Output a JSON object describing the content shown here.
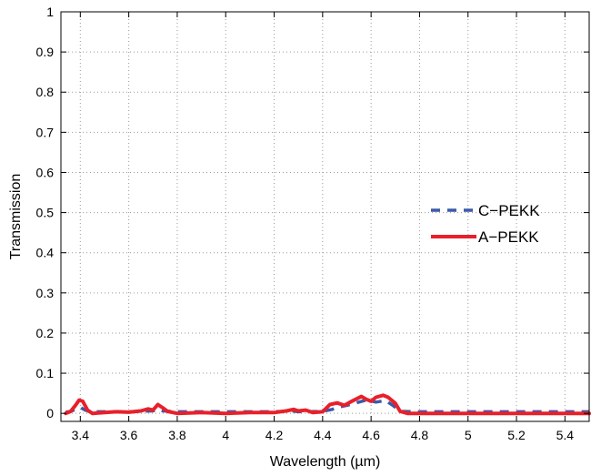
{
  "chart_data": {
    "type": "line",
    "title": "",
    "xlabel": "Wavelength (µm)",
    "ylabel": "Transmission",
    "xlim": [
      3.32,
      5.5
    ],
    "ylim": [
      -0.02,
      1
    ],
    "grid": true,
    "legend_position": "right",
    "x_ticks": [
      3.4,
      3.6,
      3.8,
      4,
      4.2,
      4.4,
      4.6,
      4.8,
      5,
      5.2,
      5.4
    ],
    "x_tick_labels": [
      "3.4",
      "3.6",
      "3.8",
      "4",
      "4.2",
      "4.4",
      "4.6",
      "4.8",
      "5",
      "5.2",
      "5.4"
    ],
    "y_ticks": [
      0,
      0.1,
      0.2,
      0.3,
      0.4,
      0.5,
      0.6,
      0.7,
      0.8,
      0.9,
      1
    ],
    "y_tick_labels": [
      "0",
      "0.1",
      "0.2",
      "0.3",
      "0.4",
      "0.5",
      "0.6",
      "0.7",
      "0.8",
      "0.9",
      "1"
    ],
    "series": [
      {
        "name": "C−PEKK",
        "color": "#3d5aa8",
        "style": "dashed",
        "points": [
          [
            3.34,
            0.003
          ],
          [
            3.36,
            0.005
          ],
          [
            3.38,
            0.01
          ],
          [
            3.4,
            0.015
          ],
          [
            3.42,
            0.008
          ],
          [
            3.44,
            0.004
          ],
          [
            3.5,
            0.004
          ],
          [
            3.6,
            0.004
          ],
          [
            3.7,
            0.006
          ],
          [
            3.72,
            0.01
          ],
          [
            3.74,
            0.006
          ],
          [
            3.8,
            0.004
          ],
          [
            4.0,
            0.004
          ],
          [
            4.2,
            0.004
          ],
          [
            4.27,
            0.006
          ],
          [
            4.3,
            0.004
          ],
          [
            4.4,
            0.005
          ],
          [
            4.44,
            0.01
          ],
          [
            4.46,
            0.015
          ],
          [
            4.5,
            0.02
          ],
          [
            4.55,
            0.028
          ],
          [
            4.58,
            0.033
          ],
          [
            4.62,
            0.028
          ],
          [
            4.66,
            0.032
          ],
          [
            4.69,
            0.02
          ],
          [
            4.72,
            0.005
          ],
          [
            4.8,
            0.004
          ],
          [
            5.0,
            0.004
          ],
          [
            5.2,
            0.004
          ],
          [
            5.4,
            0.004
          ],
          [
            5.5,
            0.004
          ]
        ]
      },
      {
        "name": "A−PEKK",
        "color": "#e8202a",
        "style": "solid",
        "points": [
          [
            3.34,
            0.0
          ],
          [
            3.36,
            0.005
          ],
          [
            3.38,
            0.02
          ],
          [
            3.395,
            0.033
          ],
          [
            3.41,
            0.03
          ],
          [
            3.43,
            0.008
          ],
          [
            3.45,
            0.0
          ],
          [
            3.5,
            0.002
          ],
          [
            3.55,
            0.004
          ],
          [
            3.6,
            0.003
          ],
          [
            3.65,
            0.006
          ],
          [
            3.68,
            0.011
          ],
          [
            3.7,
            0.008
          ],
          [
            3.72,
            0.022
          ],
          [
            3.74,
            0.014
          ],
          [
            3.76,
            0.005
          ],
          [
            3.8,
            0.0
          ],
          [
            3.9,
            0.002
          ],
          [
            4.0,
            0.0
          ],
          [
            4.1,
            0.002
          ],
          [
            4.2,
            0.002
          ],
          [
            4.25,
            0.006
          ],
          [
            4.28,
            0.01
          ],
          [
            4.3,
            0.006
          ],
          [
            4.33,
            0.008
          ],
          [
            4.36,
            0.002
          ],
          [
            4.4,
            0.004
          ],
          [
            4.43,
            0.022
          ],
          [
            4.46,
            0.026
          ],
          [
            4.49,
            0.02
          ],
          [
            4.52,
            0.03
          ],
          [
            4.56,
            0.042
          ],
          [
            4.58,
            0.035
          ],
          [
            4.6,
            0.03
          ],
          [
            4.62,
            0.04
          ],
          [
            4.65,
            0.045
          ],
          [
            4.67,
            0.04
          ],
          [
            4.7,
            0.025
          ],
          [
            4.72,
            0.005
          ],
          [
            4.75,
            0.0
          ],
          [
            4.8,
            0.0
          ],
          [
            5.0,
            0.0
          ],
          [
            5.2,
            0.0
          ],
          [
            5.4,
            0.0
          ],
          [
            5.5,
            0.0
          ]
        ]
      }
    ]
  }
}
